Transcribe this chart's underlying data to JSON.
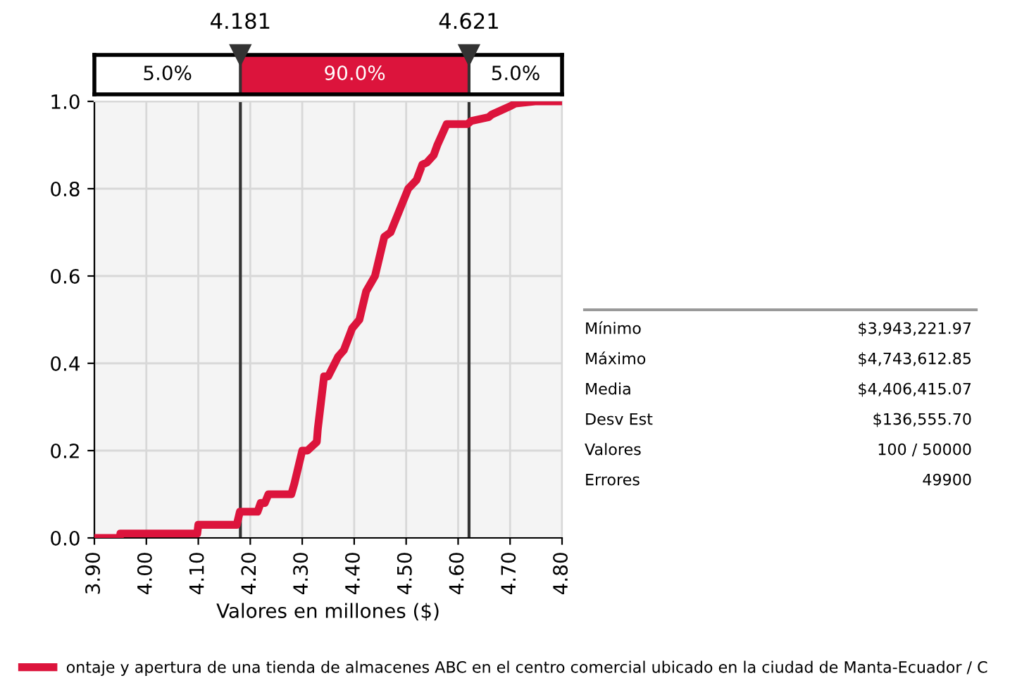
{
  "chart_data": {
    "type": "line",
    "xlabel": "Valores en millones ($)",
    "x": [
      3.9,
      3.949,
      3.95,
      4.098,
      4.1,
      4.174,
      4.18,
      4.214,
      4.22,
      4.228,
      4.235,
      4.279,
      4.285,
      4.3,
      4.31,
      4.328,
      4.33,
      4.342,
      4.35,
      4.369,
      4.38,
      4.396,
      4.41,
      4.423,
      4.44,
      4.458,
      4.47,
      4.504,
      4.52,
      4.531,
      4.54,
      4.553,
      4.56,
      4.578,
      4.59,
      4.618,
      4.625,
      4.659,
      4.665,
      4.702,
      4.71,
      4.748,
      4.8
    ],
    "series": [
      {
        "name": "ontaje y apertura de una tienda de almacenes ABC en el centro comercial ubicado en la ciudad de Manta-Ecuador / C",
        "color": "#dc143c",
        "values": [
          0.0,
          0.0,
          0.01,
          0.01,
          0.03,
          0.03,
          0.06,
          0.06,
          0.08,
          0.08,
          0.1,
          0.1,
          0.125,
          0.2,
          0.2,
          0.22,
          0.25,
          0.37,
          0.37,
          0.415,
          0.43,
          0.48,
          0.5,
          0.565,
          0.6,
          0.69,
          0.7,
          0.8,
          0.82,
          0.855,
          0.86,
          0.877,
          0.9,
          0.948,
          0.948,
          0.948,
          0.955,
          0.964,
          0.97,
          0.99,
          0.995,
          1.0,
          1.0
        ]
      }
    ],
    "xlim": [
      3.9,
      4.8
    ],
    "ylim": [
      0.0,
      1.0
    ],
    "xticks": [
      {
        "value": 3.9,
        "label": "3.90"
      },
      {
        "value": 4.0,
        "label": "4.00"
      },
      {
        "value": 4.1,
        "label": "4.10"
      },
      {
        "value": 4.2,
        "label": "4.20"
      },
      {
        "value": 4.3,
        "label": "4.30"
      },
      {
        "value": 4.4,
        "label": "4.40"
      },
      {
        "value": 4.5,
        "label": "4.50"
      },
      {
        "value": 4.6,
        "label": "4.60"
      },
      {
        "value": 4.7,
        "label": "4.70"
      },
      {
        "value": 4.8,
        "label": "4.80"
      }
    ],
    "yticks": [
      {
        "value": 0.0,
        "label": "0.0"
      },
      {
        "value": 0.2,
        "label": "0.2"
      },
      {
        "value": 0.4,
        "label": "0.4"
      },
      {
        "value": 0.6,
        "label": "0.6"
      },
      {
        "value": 0.8,
        "label": "0.8"
      },
      {
        "value": 1.0,
        "label": "1.0"
      }
    ],
    "ref_lines": [
      {
        "axis": "x",
        "value": 4.181,
        "label": "4.181",
        "color": "#333333"
      },
      {
        "axis": "x",
        "value": 4.621,
        "label": "4.621",
        "color": "#333333"
      }
    ],
    "annotations": [
      "5.0%",
      "90.0%",
      "5.0%",
      "Mínimo",
      "$3,943,221.97",
      "Máximo",
      "$4,743,612.85",
      "Media",
      "$4,406,415.07",
      "Desv Est",
      "$136,555.70",
      "Valores",
      "100 / 50000",
      "Errores",
      "49900"
    ],
    "grid": true,
    "legend": "bottom",
    "marker": "none",
    "line_style": "solid"
  }
}
